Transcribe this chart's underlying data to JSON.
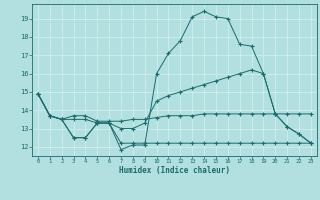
{
  "xlabel": "Humidex (Indice chaleur)",
  "background_color": "#b2e0e0",
  "grid_color": "#d0eeee",
  "line_color": "#1a6b6b",
  "xlim": [
    -0.5,
    23.5
  ],
  "ylim": [
    11.5,
    19.8
  ],
  "yticks": [
    12,
    13,
    14,
    15,
    16,
    17,
    18,
    19
  ],
  "xticks": [
    0,
    1,
    2,
    3,
    4,
    5,
    6,
    7,
    8,
    9,
    10,
    11,
    12,
    13,
    14,
    15,
    16,
    17,
    18,
    19,
    20,
    21,
    22,
    23
  ],
  "line1_y": [
    14.9,
    13.7,
    13.5,
    12.5,
    12.5,
    13.3,
    13.3,
    11.85,
    12.1,
    12.1,
    16.0,
    17.1,
    17.8,
    19.1,
    19.4,
    19.1,
    19.0,
    17.6,
    17.5,
    16.0,
    13.8,
    13.1,
    12.7,
    12.2
  ],
  "line2_y": [
    14.9,
    13.7,
    13.5,
    13.5,
    13.5,
    13.3,
    13.3,
    13.0,
    13.0,
    13.3,
    14.5,
    14.8,
    15.0,
    15.2,
    15.4,
    15.6,
    15.8,
    16.0,
    16.2,
    16.0,
    13.8,
    13.1,
    12.7,
    12.2
  ],
  "line3_y": [
    14.9,
    13.7,
    13.5,
    13.7,
    13.7,
    13.4,
    13.4,
    13.4,
    13.5,
    13.5,
    13.6,
    13.7,
    13.7,
    13.7,
    13.8,
    13.8,
    13.8,
    13.8,
    13.8,
    13.8,
    13.8,
    13.8,
    13.8,
    13.8
  ],
  "line4_y": [
    14.9,
    13.7,
    13.5,
    12.5,
    12.5,
    13.3,
    13.3,
    12.2,
    12.2,
    12.2,
    12.2,
    12.2,
    12.2,
    12.2,
    12.2,
    12.2,
    12.2,
    12.2,
    12.2,
    12.2,
    12.2,
    12.2,
    12.2,
    12.2
  ]
}
